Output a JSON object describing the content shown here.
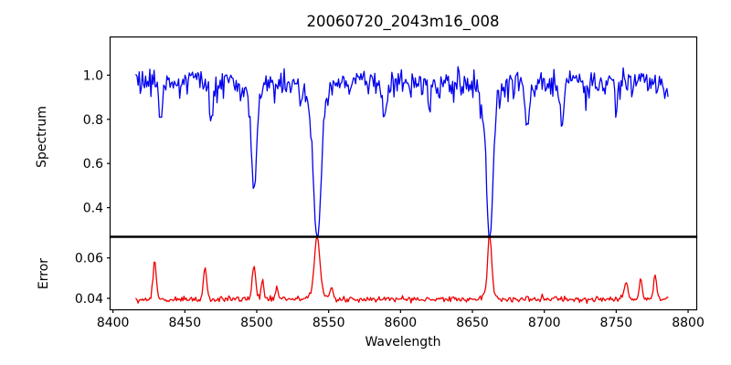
{
  "figure": {
    "title": "20060720_2043m16_008"
  },
  "chart_data": {
    "type": "line",
    "title": "20060720_2043m16_008",
    "xlabel": "Wavelength",
    "x_ticks": [
      8400,
      8450,
      8500,
      8550,
      8600,
      8650,
      8700,
      8750,
      8800
    ],
    "xlim": [
      8398,
      8806
    ],
    "x_data_range": [
      8416,
      8786
    ],
    "n_points": 500,
    "noise_seed": 9,
    "grid": false,
    "legend": "none",
    "frame_color": "#000000",
    "panels": [
      {
        "name": "spectrum",
        "ylabel": "Spectrum",
        "y_ticks": [
          0.4,
          0.6,
          0.8,
          1.0
        ],
        "y_tick_labels": [
          "0.4",
          "0.6",
          "0.8",
          "1.0"
        ],
        "ylim": [
          0.268,
          1.173
        ],
        "line_color": "#0000ee",
        "continuum": 0.965,
        "noise_sigma": 0.035,
        "absorption_lines": [
          {
            "center": 8433,
            "min": 0.8,
            "sigma": 1.2
          },
          {
            "center": 8468,
            "min": 0.78,
            "sigma": 1.3
          },
          {
            "center": 8498,
            "min": 0.51,
            "sigma": 1.8
          },
          {
            "center": 8542,
            "min": 0.32,
            "sigma": 2.6
          },
          {
            "center": 8589,
            "min": 0.8,
            "sigma": 1.3
          },
          {
            "center": 8620,
            "min": 0.85,
            "sigma": 1.1
          },
          {
            "center": 8662,
            "min": 0.31,
            "sigma": 2.2
          },
          {
            "center": 8688,
            "min": 0.73,
            "sigma": 1.4
          },
          {
            "center": 8712,
            "min": 0.77,
            "sigma": 1.3
          },
          {
            "center": 8750,
            "min": 0.86,
            "sigma": 1.0
          }
        ]
      },
      {
        "name": "error",
        "ylabel": "Error",
        "y_ticks": [
          0.04,
          0.06
        ],
        "y_tick_labels": [
          "0.04",
          "0.06"
        ],
        "ylim": [
          0.0343,
          0.0705
        ],
        "line_color": "#ee0000",
        "baseline": 0.0395,
        "noise_sigma": 0.0007,
        "peaks": [
          {
            "center": 8429,
            "max": 0.058,
            "sigma": 1.2
          },
          {
            "center": 8464,
            "max": 0.0545,
            "sigma": 1.2
          },
          {
            "center": 8498,
            "max": 0.056,
            "sigma": 1.3
          },
          {
            "center": 8504,
            "max": 0.05,
            "sigma": 0.9
          },
          {
            "center": 8514,
            "max": 0.046,
            "sigma": 0.9
          },
          {
            "center": 8542,
            "max": 0.0675,
            "sigma": 1.8
          },
          {
            "center": 8552,
            "max": 0.0445,
            "sigma": 1.0
          },
          {
            "center": 8662,
            "max": 0.069,
            "sigma": 1.3
          },
          {
            "center": 8757,
            "max": 0.0485,
            "sigma": 1.2
          },
          {
            "center": 8767,
            "max": 0.049,
            "sigma": 1.0
          },
          {
            "center": 8777,
            "max": 0.052,
            "sigma": 1.0
          }
        ]
      }
    ]
  }
}
